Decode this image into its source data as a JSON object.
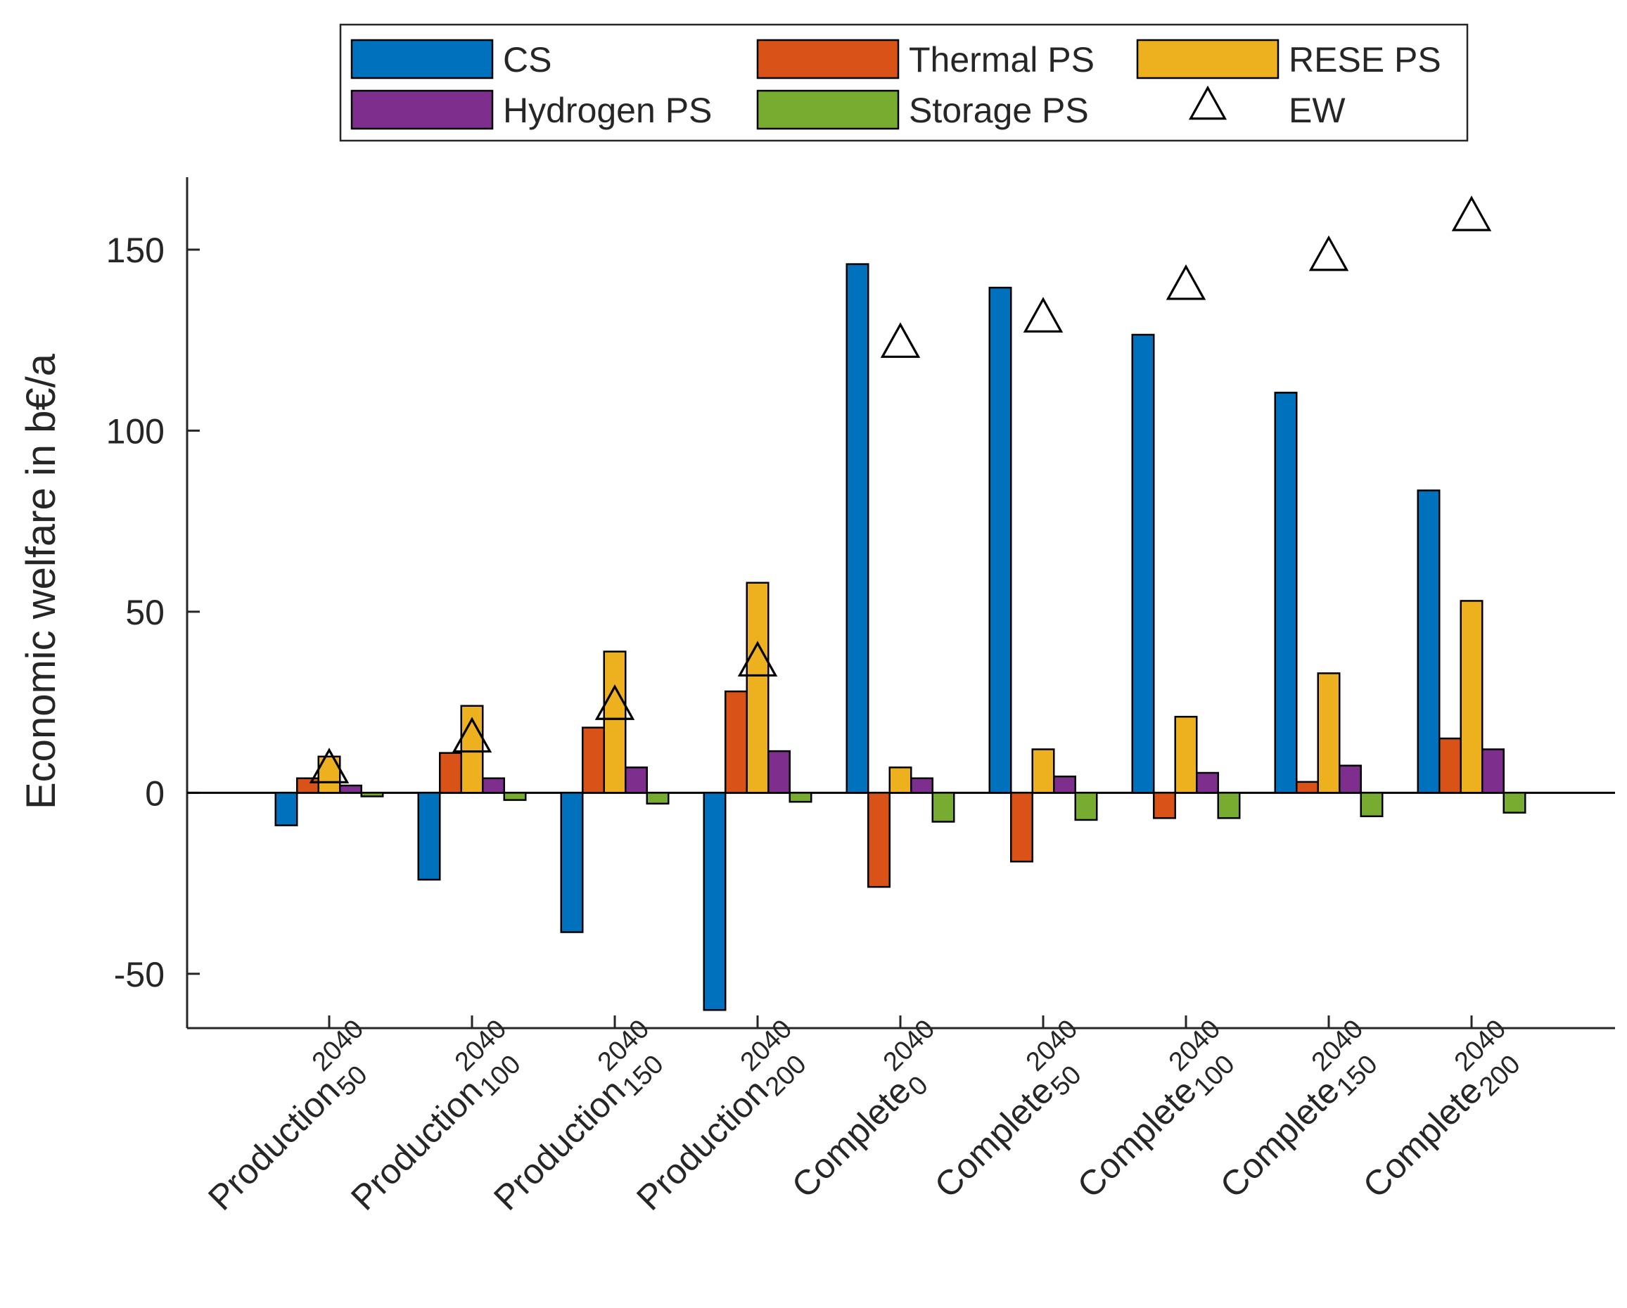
{
  "chart_data": {
    "type": "bar",
    "ylabel": "Economic welfare in b€/a",
    "xlabel": "",
    "ylim": [
      -65,
      170
    ],
    "yticks": [
      -50,
      0,
      50,
      100,
      150
    ],
    "ytick_labels": [
      "-50",
      "0",
      "50",
      "100",
      "150"
    ],
    "grid": false,
    "legend_position": "top",
    "categories": [
      {
        "name": "Production",
        "sup": "2040",
        "sub": "50"
      },
      {
        "name": "Production",
        "sup": "2040",
        "sub": "100"
      },
      {
        "name": "Production",
        "sup": "2040",
        "sub": "150"
      },
      {
        "name": "Production",
        "sup": "2040",
        "sub": "200"
      },
      {
        "name": "Complete",
        "sup": "2040",
        "sub": "0"
      },
      {
        "name": "Complete",
        "sup": "2040",
        "sub": "50"
      },
      {
        "name": "Complete",
        "sup": "2040",
        "sub": "100"
      },
      {
        "name": "Complete",
        "sup": "2040",
        "sub": "150"
      },
      {
        "name": "Complete",
        "sup": "2040",
        "sub": "200"
      }
    ],
    "series": [
      {
        "name": "CS",
        "color": "#0072BD",
        "values": [
          -9,
          -24,
          -38.5,
          -60,
          146,
          139.5,
          126.5,
          110.5,
          83.5
        ]
      },
      {
        "name": "Thermal PS",
        "color": "#D95319",
        "values": [
          4,
          11,
          18,
          28,
          -26,
          -19,
          -7,
          3,
          15
        ]
      },
      {
        "name": "RESE PS",
        "color": "#EDB120",
        "values": [
          10,
          24,
          39,
          58,
          7,
          12,
          21,
          33,
          53
        ]
      },
      {
        "name": "Hydrogen PS",
        "color": "#7E2F8E",
        "values": [
          2,
          4,
          7,
          11.5,
          4,
          4.5,
          5.5,
          7.5,
          12
        ]
      },
      {
        "name": "Storage PS",
        "color": "#77AC30",
        "values": [
          -1,
          -2,
          -3,
          -2.5,
          -8,
          -7.5,
          -7,
          -6.5,
          -5.5
        ]
      }
    ],
    "markers": {
      "name": "EW",
      "symbol": "triangle",
      "values": [
        6.5,
        15,
        24,
        36,
        124,
        131,
        140,
        148,
        159
      ]
    },
    "legend": {
      "entries": [
        "CS",
        "Thermal PS",
        "RESE PS",
        "Hydrogen PS",
        "Storage PS",
        "EW"
      ]
    }
  }
}
